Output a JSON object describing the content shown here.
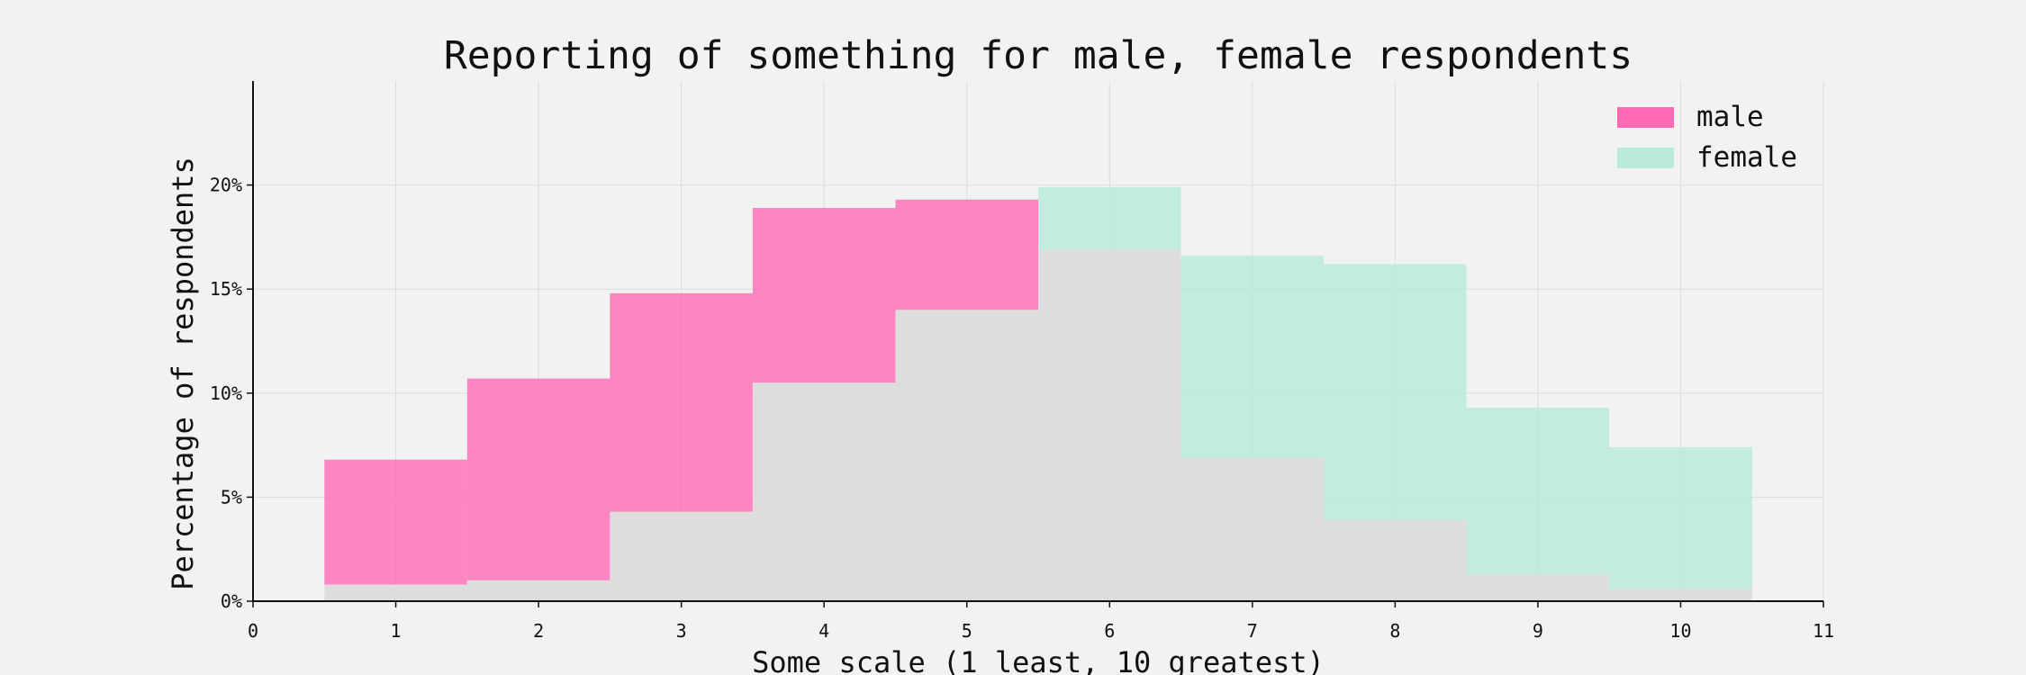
{
  "chart_data": {
    "type": "bar",
    "title": "Reporting of something for male, female respondents",
    "xlabel": "Some scale (1 least, 10 greatest)",
    "ylabel": "Percentage of respondents",
    "categories": [
      1,
      2,
      3,
      4,
      5,
      6,
      7,
      8,
      9,
      10
    ],
    "xlim": [
      0,
      11
    ],
    "ylim": [
      0,
      25
    ],
    "x_ticks": [
      0,
      1,
      2,
      3,
      4,
      5,
      6,
      7,
      8,
      9,
      10,
      11
    ],
    "y_ticks": [
      0,
      5,
      10,
      15,
      20
    ],
    "y_tick_labels": [
      "0%",
      "5%",
      "10%",
      "15%",
      "20%"
    ],
    "grid": true,
    "legend_position": "top-right",
    "overlap_color": "#dddddd",
    "series": [
      {
        "name": "male",
        "color": "#ff69b4",
        "values": [
          6.8,
          10.7,
          14.8,
          18.9,
          19.3,
          16.9,
          6.9,
          3.9,
          1.3,
          0.6
        ]
      },
      {
        "name": "female",
        "color": "#b5ead7",
        "values": [
          0.8,
          1.0,
          4.3,
          10.5,
          14.0,
          19.9,
          16.6,
          16.2,
          9.3,
          7.4
        ]
      }
    ]
  }
}
